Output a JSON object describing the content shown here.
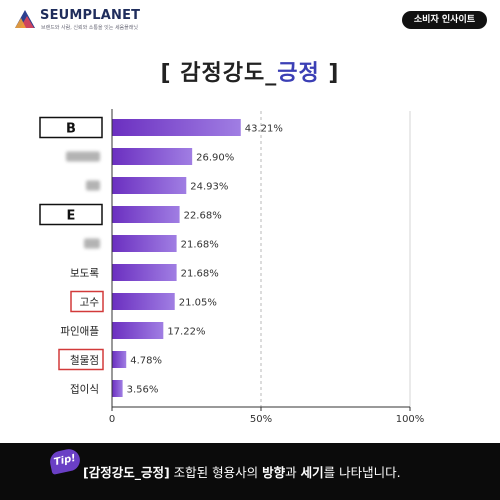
{
  "header": {
    "logo_name": "SEUMPLANET",
    "logo_tagline": "브랜드와 사람, 신뢰와 소통을 잇는 세움플래닛",
    "badge": "소비자 인사이트",
    "icon": "planet-logo-icon"
  },
  "title": {
    "prefix": "[ 감정강도_",
    "accent": "긍정",
    "suffix": " ]"
  },
  "colors": {
    "accent": "#3b3fb5",
    "bar_start": "#6b2fc0",
    "bar_end": "#a07ee3",
    "highlight_box": "#d23a3a"
  },
  "chart_data": {
    "type": "bar",
    "orientation": "horizontal",
    "categories": [
      "B",
      "",
      "",
      "E",
      "",
      "보도록",
      "고수",
      "파인애플",
      "철물점",
      "접이식"
    ],
    "values": [
      43.21,
      26.9,
      24.93,
      22.68,
      21.68,
      21.68,
      21.05,
      17.22,
      4.78,
      3.56
    ],
    "data_labels": [
      "43.21%",
      "26.90%",
      "24.93%",
      "22.68%",
      "21.68%",
      "21.68%",
      "21.05%",
      "17.22%",
      "4.78%",
      "3.56%"
    ],
    "blurred_categories": [
      1,
      2,
      4
    ],
    "boxed_black": [
      0,
      3
    ],
    "boxed_red": [
      6,
      8
    ],
    "xlim": [
      0,
      100
    ],
    "xticks": [
      "0",
      "50%",
      "100%"
    ],
    "xtick_values": [
      0,
      50,
      100
    ],
    "reference_line": 50,
    "xlabel": "",
    "ylabel": ""
  },
  "footer": {
    "tip": "Tip!",
    "text_bold": "[감정강도_긍정]",
    "text_mid": " 조합된 형용사의 ",
    "text_b1": "방향",
    "text_and": "과 ",
    "text_b2": "세기",
    "text_end": "를 나타냅니다."
  }
}
